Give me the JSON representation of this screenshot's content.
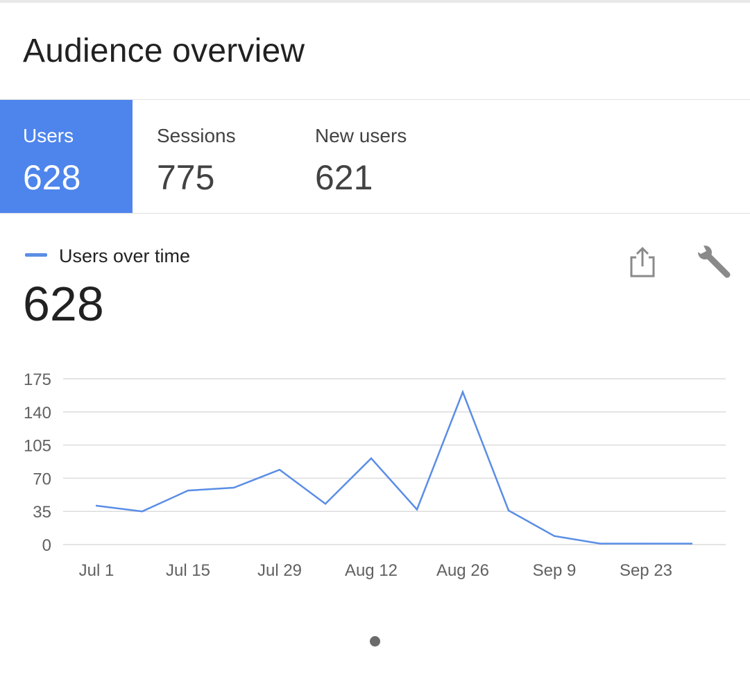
{
  "page": {
    "title": "Audience overview"
  },
  "tabs": [
    {
      "label": "Users",
      "value": "628",
      "active": true
    },
    {
      "label": "Sessions",
      "value": "775",
      "active": false
    },
    {
      "label": "New users",
      "value": "621",
      "active": false
    }
  ],
  "card": {
    "legend_label": "Users over time",
    "total": "628",
    "share_icon": "share-icon",
    "settings_icon": "wrench-icon"
  },
  "colors": {
    "accent": "#4e85ec",
    "series": "#5a8de6",
    "grid": "#dcdcdc",
    "axis_text": "#616161"
  },
  "chart_data": {
    "type": "line",
    "title": "Users over time",
    "xlabel": "",
    "ylabel": "",
    "ylim": [
      0,
      175
    ],
    "yticks": [
      0,
      35,
      70,
      105,
      140,
      175
    ],
    "xlim": [
      0,
      13.9
    ],
    "xticks": [
      {
        "label": "Jul 1",
        "x": 0
      },
      {
        "label": "Jul 15",
        "x": 2
      },
      {
        "label": "Jul 29",
        "x": 4
      },
      {
        "label": "Aug 12",
        "x": 6
      },
      {
        "label": "Aug 26",
        "x": 8
      },
      {
        "label": "Sep 9",
        "x": 10
      },
      {
        "label": "Sep 23",
        "x": 12
      }
    ],
    "grid": true,
    "series": [
      {
        "name": "Users over time",
        "x": [
          0,
          1,
          2,
          3,
          4,
          5,
          6,
          7,
          8,
          9,
          10,
          11,
          12,
          13
        ],
        "values": [
          41,
          35,
          57,
          60,
          79,
          43,
          91,
          37,
          161,
          36,
          9,
          1,
          1,
          1
        ]
      }
    ]
  },
  "pager": {
    "pages": 1,
    "current": 1
  }
}
